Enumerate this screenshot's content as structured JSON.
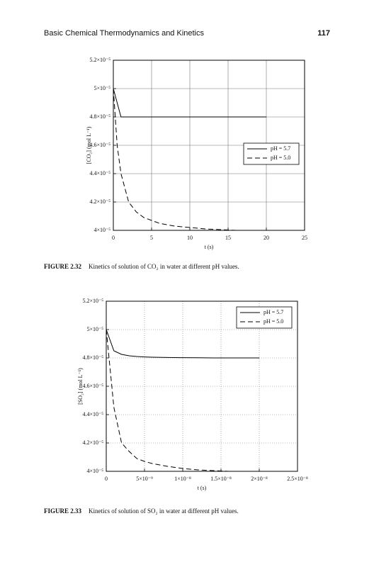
{
  "header": {
    "title": "Basic Chemical Thermodynamics and Kinetics",
    "page": "117"
  },
  "chart_data": [
    {
      "type": "line",
      "caption_label": "FIGURE 2.32",
      "caption_text": "Kinetics of solution of CO₂ in water at different pH values.",
      "xlabel": "t (s)",
      "ylabel": "[CO₂] (mol L⁻¹)",
      "x": [
        0,
        0.5,
        1,
        2,
        3,
        4,
        5,
        6,
        7,
        8,
        10,
        12,
        14,
        16,
        18,
        20
      ],
      "series": [
        {
          "name": "pH = 5.7",
          "color": "#000000",
          "linestyle": "solid",
          "values": [
            5e-05,
            4.9e-05,
            4.8e-05,
            4.8e-05,
            4.8e-05,
            4.8e-05,
            4.8e-05,
            4.8e-05,
            4.8e-05,
            4.8e-05,
            4.8e-05,
            4.8e-05,
            4.8e-05,
            4.8e-05,
            4.8e-05,
            4.8e-05
          ]
        },
        {
          "name": "pH = 5.0",
          "color": "#000000",
          "linestyle": "dashed",
          "values": [
            5e-05,
            4.6e-05,
            4.4e-05,
            4.2e-05,
            4.13e-05,
            4.09e-05,
            4.07e-05,
            4.05e-05,
            4.04e-05,
            4.03e-05,
            4.02e-05,
            4.01e-05,
            4.005e-05,
            4e-05,
            4e-05,
            4e-05
          ]
        }
      ],
      "xlim": [
        0,
        25
      ],
      "xticks": [
        0,
        5,
        10,
        15,
        20,
        25
      ],
      "ylim": [
        4e-05,
        5.2e-05
      ],
      "yticks": [
        {
          "value": 4e-05,
          "label": "4×10⁻⁵"
        },
        {
          "value": 4.2e-05,
          "label": "4.2×10⁻⁵"
        },
        {
          "value": 4.4e-05,
          "label": "4.4×10⁻⁵"
        },
        {
          "value": 4.6e-05,
          "label": "4.6×10⁻⁵"
        },
        {
          "value": 4.8e-05,
          "label": "4.8×10⁻⁵"
        },
        {
          "value": 5e-05,
          "label": "5×10⁻⁵"
        },
        {
          "value": 5.2e-05,
          "label": "5.2×10⁻⁵"
        }
      ],
      "grid": "solid",
      "legend": "center right"
    },
    {
      "type": "line",
      "caption_label": "FIGURE 2.33",
      "caption_text": "Kinetics of solution of SO₂ in water at different pH values.",
      "xlabel": "t (s)",
      "ylabel": "[SO₂] (mol L⁻¹)",
      "x": [
        0,
        1e-09,
        2e-09,
        3e-09,
        4e-09,
        5e-09,
        6e-09,
        8e-09,
        1e-08,
        1.2e-08,
        1.4e-08,
        1.6e-08,
        1.8e-08,
        2e-08
      ],
      "series": [
        {
          "name": "pH = 5.7",
          "color": "#000000",
          "linestyle": "solid",
          "values": [
            5e-05,
            4.85e-05,
            4.825e-05,
            4.815e-05,
            4.81e-05,
            4.807e-05,
            4.805e-05,
            4.803e-05,
            4.802e-05,
            4.801e-05,
            4.8e-05,
            4.8e-05,
            4.8e-05,
            4.8e-05
          ]
        },
        {
          "name": "pH = 5.0",
          "color": "#000000",
          "linestyle": "dashed",
          "values": [
            5e-05,
            4.45e-05,
            4.2e-05,
            4.14e-05,
            4.09e-05,
            4.07e-05,
            4.055e-05,
            4.035e-05,
            4.02e-05,
            4.01e-05,
            4.005e-05,
            4e-05,
            4e-05,
            4e-05
          ]
        }
      ],
      "xlim": [
        0,
        2.5e-08
      ],
      "xticks": [
        0,
        {
          "value": 5e-09,
          "label": "5×10⁻⁹"
        },
        {
          "value": 1e-08,
          "label": "1×10⁻⁸"
        },
        {
          "value": 1.5e-08,
          "label": "1.5×10⁻⁸"
        },
        {
          "value": 2e-08,
          "label": "2×10⁻⁸"
        },
        {
          "value": 2.5e-08,
          "label": "2.5×10⁻⁸"
        }
      ],
      "ylim": [
        4e-05,
        5.2e-05
      ],
      "yticks": [
        {
          "value": 4e-05,
          "label": "4×10⁻⁵"
        },
        {
          "value": 4.2e-05,
          "label": "4.2×10⁻⁵"
        },
        {
          "value": 4.4e-05,
          "label": "4.4×10⁻⁵"
        },
        {
          "value": 4.6e-05,
          "label": "4.6×10⁻⁵"
        },
        {
          "value": 4.8e-05,
          "label": "4.8×10⁻⁵"
        },
        {
          "value": 5e-05,
          "label": "5×10⁻⁵"
        },
        {
          "value": 5.2e-05,
          "label": "5.2×10⁻⁵"
        }
      ],
      "grid": "dotted",
      "legend": "upper right"
    }
  ]
}
